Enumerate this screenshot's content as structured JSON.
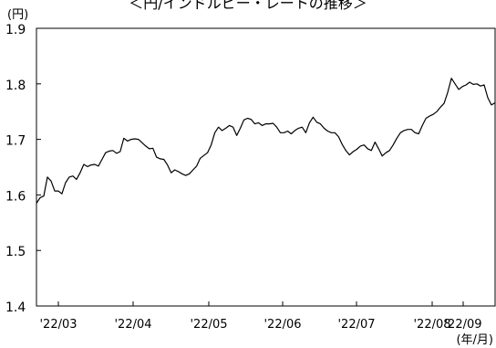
{
  "chart_data": {
    "type": "line",
    "title": "＜円/インドルピー・レートの推移＞",
    "y_unit_label": "(円)",
    "x_unit_label": "(年/月)",
    "ylim": [
      1.4,
      1.9
    ],
    "y_ticks": [
      "1.9",
      "1.8",
      "1.7",
      "1.6",
      "1.5",
      "1.4"
    ],
    "x_ticks": [
      "'22/03",
      "'22/04",
      "'22/05",
      "'22/06",
      "'22/07",
      "'22/08",
      "'22/09"
    ],
    "grid": false,
    "series": [
      {
        "values": [
          1.585,
          1.595,
          1.598,
          1.632,
          1.625,
          1.607,
          1.607,
          1.602,
          1.622,
          1.632,
          1.634,
          1.628,
          1.64,
          1.655,
          1.651,
          1.654,
          1.655,
          1.652,
          1.664,
          1.676,
          1.679,
          1.68,
          1.675,
          1.678,
          1.702,
          1.697,
          1.7,
          1.701,
          1.7,
          1.694,
          1.688,
          1.683,
          1.684,
          1.668,
          1.665,
          1.664,
          1.654,
          1.64,
          1.645,
          1.642,
          1.638,
          1.635,
          1.638,
          1.645,
          1.652,
          1.666,
          1.671,
          1.676,
          1.69,
          1.712,
          1.722,
          1.716,
          1.72,
          1.725,
          1.722,
          1.707,
          1.72,
          1.735,
          1.738,
          1.736,
          1.728,
          1.73,
          1.725,
          1.728,
          1.728,
          1.729,
          1.722,
          1.712,
          1.712,
          1.715,
          1.71,
          1.716,
          1.72,
          1.722,
          1.712,
          1.73,
          1.74,
          1.731,
          1.728,
          1.72,
          1.715,
          1.712,
          1.712,
          1.705,
          1.691,
          1.68,
          1.672,
          1.678,
          1.682,
          1.688,
          1.69,
          1.683,
          1.68,
          1.695,
          1.683,
          1.67,
          1.676,
          1.68,
          1.69,
          1.702,
          1.712,
          1.716,
          1.718,
          1.718,
          1.712,
          1.71,
          1.725,
          1.738,
          1.742,
          1.745,
          1.75,
          1.758,
          1.765,
          1.785,
          1.81,
          1.8,
          1.79,
          1.795,
          1.798,
          1.803,
          1.799,
          1.8,
          1.796,
          1.798,
          1.775,
          1.762,
          1.766
        ]
      }
    ]
  }
}
